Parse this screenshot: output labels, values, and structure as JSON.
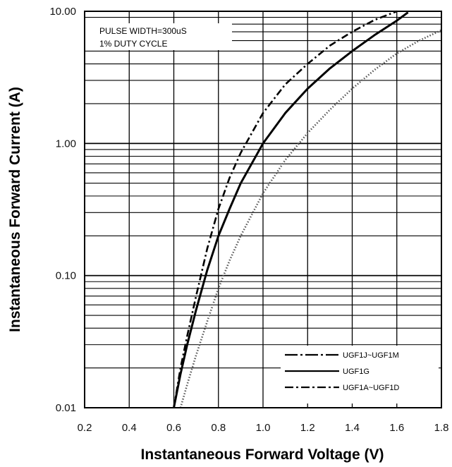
{
  "chart_data": {
    "type": "line",
    "xlabel": "Instantaneous Forward Voltage (V)",
    "ylabel": "Instantaneous Forward Current (A)",
    "xlim": [
      0.2,
      1.8
    ],
    "ylim": [
      0.01,
      10
    ],
    "y_scale": "log",
    "grid": true,
    "legend_position": "bottom-right",
    "x_ticks": [
      "0.2",
      "0.4",
      "0.6",
      "0.8",
      "1.0",
      "1.2",
      "1.4",
      "1.6",
      "1.8"
    ],
    "y_ticks": [
      {
        "value": 0.01,
        "label": "0.01"
      },
      {
        "value": 0.1,
        "label": "0.10"
      },
      {
        "value": 1,
        "label": "1.00"
      },
      {
        "value": 10,
        "label": "10.00"
      }
    ],
    "annotations": [
      "PULSE WIDTH=300uS",
      "1% DUTY CYCLE"
    ],
    "series": [
      {
        "name": "UGF1J~UGF1M",
        "style": "dotted",
        "color": "#555555",
        "x": [
          0.63,
          0.66,
          0.7,
          0.75,
          0.8,
          0.85,
          0.9,
          1.0,
          1.1,
          1.2,
          1.3,
          1.4,
          1.5,
          1.6,
          1.7,
          1.8
        ],
        "y": [
          0.01,
          0.015,
          0.025,
          0.045,
          0.08,
          0.13,
          0.2,
          0.42,
          0.75,
          1.2,
          1.8,
          2.6,
          3.6,
          4.8,
          6.0,
          7.2
        ]
      },
      {
        "name": "UGF1G",
        "style": "solid",
        "color": "#000000",
        "x": [
          0.6,
          0.63,
          0.66,
          0.7,
          0.75,
          0.8,
          0.85,
          0.9,
          1.0,
          1.1,
          1.2,
          1.3,
          1.4,
          1.5,
          1.6,
          1.65
        ],
        "y": [
          0.01,
          0.018,
          0.03,
          0.055,
          0.11,
          0.2,
          0.32,
          0.5,
          1.0,
          1.7,
          2.6,
          3.7,
          5.0,
          6.6,
          8.5,
          9.8
        ]
      },
      {
        "name": "UGF1A~UGF1D",
        "style": "dash-dot",
        "color": "#000000",
        "x": [
          0.6,
          0.63,
          0.66,
          0.7,
          0.75,
          0.8,
          0.85,
          0.9,
          1.0,
          1.1,
          1.2,
          1.3,
          1.4,
          1.5,
          1.6
        ],
        "y": [
          0.01,
          0.02,
          0.035,
          0.07,
          0.16,
          0.32,
          0.55,
          0.85,
          1.7,
          2.8,
          4.0,
          5.5,
          7.0,
          8.6,
          10.0
        ]
      }
    ]
  }
}
